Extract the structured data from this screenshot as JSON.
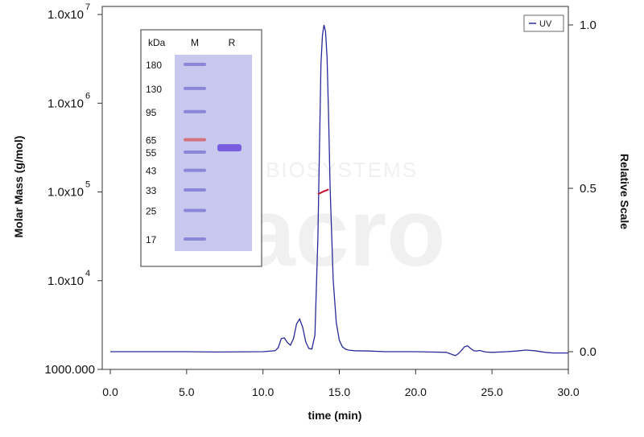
{
  "chart_data": {
    "type": "line",
    "xlabel": "time (min)",
    "ylabel_left": "Molar Mass (g/mol)",
    "ylabel_right": "Relative Scale",
    "xlim": [
      0,
      30
    ],
    "ylim_left": [
      1000,
      10000000
    ],
    "yscale_left": "log",
    "ylim_right": [
      0,
      1.0
    ],
    "x_ticks": [
      "0.0",
      "5.0",
      "10.0",
      "15.0",
      "20.0",
      "25.0",
      "30.0"
    ],
    "y_left_ticks": [
      {
        "mantissa": "1000.000",
        "exp": ""
      },
      {
        "mantissa": "1.0x10",
        "exp": "4"
      },
      {
        "mantissa": "1.0x10",
        "exp": "5"
      },
      {
        "mantissa": "1.0x10",
        "exp": "6"
      },
      {
        "mantissa": "1.0x10",
        "exp": "7"
      }
    ],
    "y_right_ticks": [
      "0.0",
      "0.5",
      "1.0"
    ],
    "legend": {
      "position": "top-right",
      "entries": [
        "UV"
      ]
    },
    "colors": {
      "uv": "#2a2a9a",
      "molar_mass": "#c8102e",
      "axis": "#333333"
    },
    "series": [
      {
        "name": "UV",
        "axis": "right",
        "x": [
          0.0,
          2.0,
          5.0,
          7.0,
          10.0,
          10.8,
          11.0,
          11.2,
          11.4,
          11.6,
          11.8,
          12.0,
          12.2,
          12.4,
          12.6,
          12.8,
          13.0,
          13.2,
          13.4,
          13.6,
          13.8,
          13.9,
          14.0,
          14.1,
          14.2,
          14.3,
          14.4,
          14.6,
          14.8,
          15.0,
          15.2,
          15.4,
          15.6,
          16.0,
          17.0,
          18.0,
          19.0,
          20.0,
          21.0,
          22.0,
          22.6,
          22.8,
          23.0,
          23.2,
          23.4,
          23.6,
          23.8,
          24.0,
          24.2,
          24.4,
          24.6,
          25.0,
          26.0,
          26.6,
          27.2,
          27.8,
          28.5,
          29.0,
          30.0
        ],
        "y": [
          0.0,
          0.0,
          0.0,
          -0.001,
          0.0,
          0.003,
          0.012,
          0.04,
          0.042,
          0.028,
          0.02,
          0.04,
          0.085,
          0.1,
          0.075,
          0.03,
          0.01,
          0.008,
          0.05,
          0.35,
          0.88,
          0.97,
          1.0,
          0.98,
          0.9,
          0.72,
          0.5,
          0.22,
          0.09,
          0.035,
          0.015,
          0.008,
          0.005,
          0.003,
          0.002,
          0.0,
          0.0,
          0.0,
          -0.001,
          -0.002,
          -0.012,
          -0.006,
          0.004,
          0.015,
          0.018,
          0.01,
          0.003,
          0.002,
          0.004,
          0.001,
          -0.001,
          -0.002,
          0.0,
          0.002,
          0.005,
          0.003,
          -0.002,
          -0.004,
          -0.004
        ]
      },
      {
        "name": "Molar Mass",
        "axis": "left",
        "x": [
          13.6,
          13.8,
          14.0,
          14.2,
          14.3
        ],
        "y": [
          95000,
          98000,
          102000,
          105000,
          107000
        ]
      }
    ]
  },
  "gel_inset": {
    "header": {
      "kda": "kDa",
      "marker": "M",
      "sample": "R"
    },
    "ladder": [
      {
        "kda": "180",
        "color": "#8a86d8",
        "level": 180
      },
      {
        "kda": "130",
        "color": "#8a86d8",
        "level": 130
      },
      {
        "kda": "95",
        "color": "#8a86d8",
        "level": 95
      },
      {
        "kda": "65",
        "color": "#d2737f",
        "level": 65
      },
      {
        "kda": "55",
        "color": "#8a86d8",
        "level": 55
      },
      {
        "kda": "43",
        "color": "#8a86d8",
        "level": 43
      },
      {
        "kda": "33",
        "color": "#8a86d8",
        "level": 33
      },
      {
        "kda": "25",
        "color": "#8a86d8",
        "level": 25
      },
      {
        "kda": "17",
        "color": "#8a86d8",
        "level": 17
      }
    ],
    "sample_band_kda": 58,
    "gel_color": "#c8c8ee",
    "sample_band_color": "#7a5ee0"
  },
  "watermark": {
    "text": "BIOSYSTEMS",
    "logo": "acro"
  }
}
